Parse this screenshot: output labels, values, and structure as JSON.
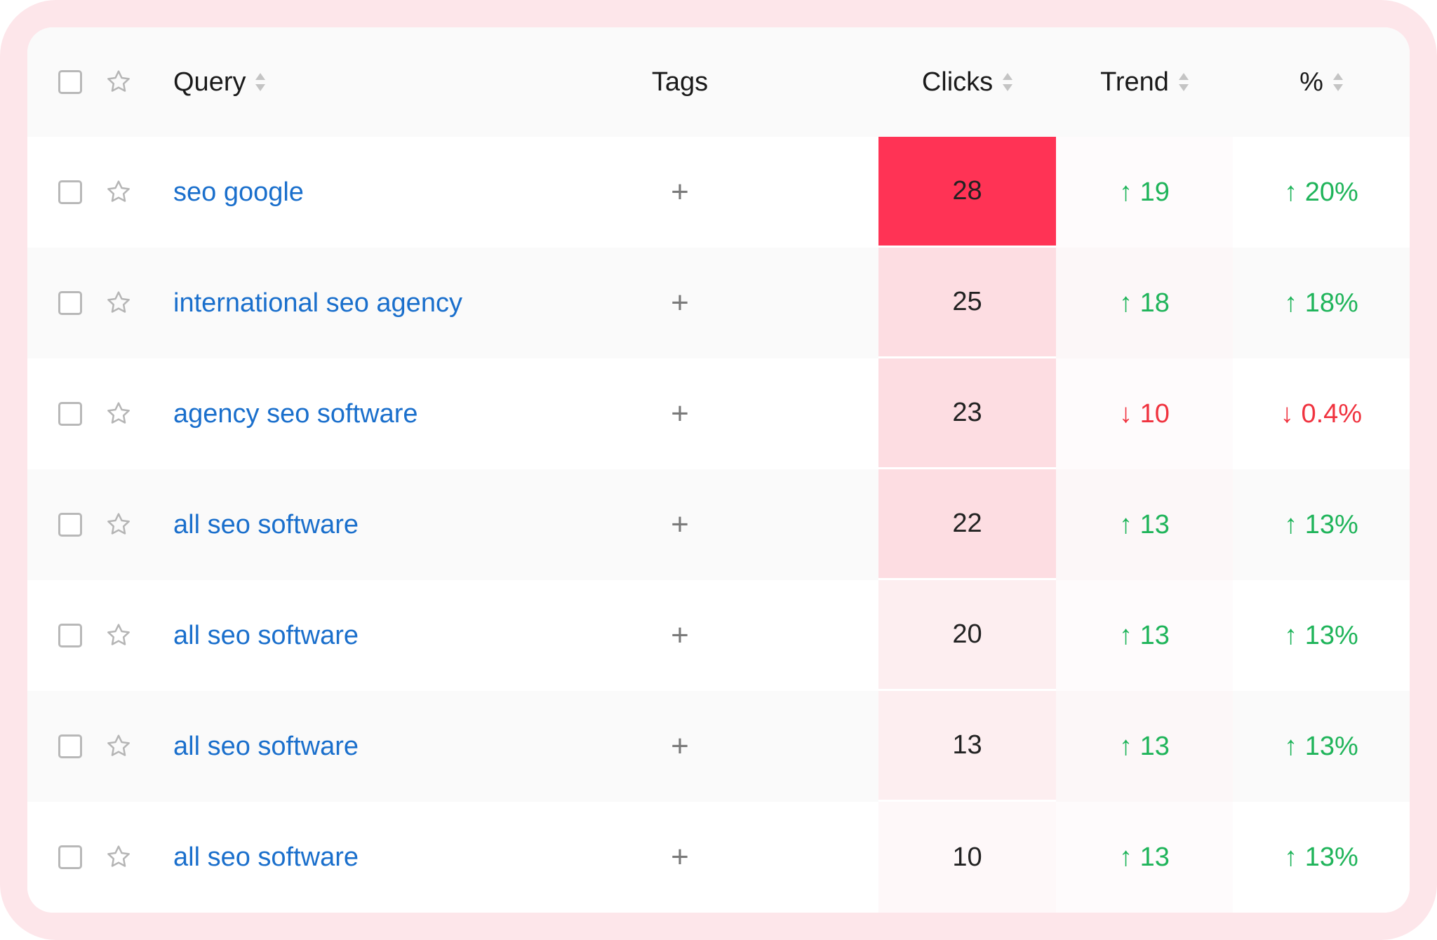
{
  "columns": {
    "query": "Query",
    "tags": "Tags",
    "clicks": "Clicks",
    "trend": "Trend",
    "percent": "%"
  },
  "tag_add_label": "+",
  "colors": {
    "link": "#1a6fcc",
    "up": "#1fb45a",
    "down": "#f0333f",
    "heat_max": "#ff3355"
  },
  "rows": [
    {
      "query": "seo google",
      "clicks": "28",
      "trend": "↑ 19",
      "percent": "↑ 20%",
      "direction": "up",
      "heat": "#ff3355"
    },
    {
      "query": "international seo agency",
      "clicks": "25",
      "trend": "↑ 18",
      "percent": "↑ 18%",
      "direction": "up",
      "heat": "#fddde2"
    },
    {
      "query": "agency seo software",
      "clicks": "23",
      "trend": "↓ 10",
      "percent": "↓ 0.4%",
      "direction": "down",
      "heat": "#fddde2"
    },
    {
      "query": "all seo software",
      "clicks": "22",
      "trend": "↑ 13",
      "percent": "↑ 13%",
      "direction": "up",
      "heat": "#fddde2"
    },
    {
      "query": "all seo software",
      "clicks": "20",
      "trend": "↑ 13",
      "percent": "↑ 13%",
      "direction": "up",
      "heat": "#fdeef0"
    },
    {
      "query": "all seo software",
      "clicks": "13",
      "trend": "↑ 13",
      "percent": "↑ 13%",
      "direction": "up",
      "heat": "#fdeef0"
    },
    {
      "query": "all seo software",
      "clicks": "10",
      "trend": "↑ 13",
      "percent": "↑ 13%",
      "direction": "up",
      "heat": "#fef8f9"
    }
  ]
}
